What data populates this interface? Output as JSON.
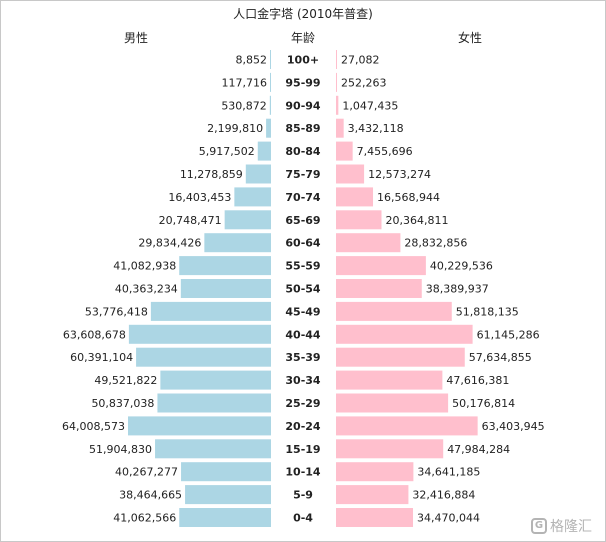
{
  "chart_data": {
    "type": "bar",
    "orientation": "horizontal-butterfly",
    "title": "人口金字塔 (2010年普查)",
    "left_header": "男性",
    "center_header": "年龄",
    "right_header": "女性",
    "categories": [
      "100+",
      "95-99",
      "90-94",
      "85-89",
      "80-84",
      "75-79",
      "70-74",
      "65-69",
      "60-64",
      "55-59",
      "50-54",
      "45-49",
      "40-44",
      "35-39",
      "30-34",
      "25-29",
      "20-24",
      "15-19",
      "10-14",
      "5-9",
      "0-4"
    ],
    "series": [
      {
        "name": "男性",
        "color": "#acd6e4",
        "values": [
          8852,
          117716,
          530872,
          2199810,
          5917502,
          11278859,
          16403453,
          20748471,
          29834426,
          41082938,
          40363234,
          53776418,
          63608678,
          60391104,
          49521822,
          50837038,
          64008573,
          51904830,
          40267277,
          38464665,
          41062566
        ],
        "labels": [
          "8,852",
          "117,716",
          "530,872",
          "2,199,810",
          "5,917,502",
          "11,278,859",
          "16,403,453",
          "20,748,471",
          "29,834,426",
          "41,082,938",
          "40,363,234",
          "53,776,418",
          "63,608,678",
          "60,391,104",
          "49,521,822",
          "50,837,038",
          "64,008,573",
          "51,904,830",
          "40,267,277",
          "38,464,665",
          "41,062,566"
        ]
      },
      {
        "name": "女性",
        "color": "#ffbfcd",
        "values": [
          27082,
          252263,
          1047435,
          3432118,
          7455696,
          12573274,
          16568944,
          20364811,
          28832856,
          40229536,
          38389937,
          51818135,
          61145286,
          57634855,
          47616381,
          50176814,
          63403945,
          47984284,
          34641185,
          32416884,
          34470044
        ],
        "labels": [
          "27,082",
          "252,263",
          "1,047,435",
          "3,432,118",
          "7,455,696",
          "12,573,274",
          "16,568,944",
          "20,364,811",
          "28,832,856",
          "40,229,536",
          "38,389,937",
          "51,818,135",
          "61,145,286",
          "57,634,855",
          "47,616,381",
          "50,176,814",
          "63,403,945",
          "47,984,284",
          "34,641,185",
          "32,416,884",
          "34,470,044"
        ]
      }
    ],
    "xlim": [
      0,
      64008573
    ]
  },
  "watermark": {
    "icon": "G",
    "text": "格隆汇"
  }
}
